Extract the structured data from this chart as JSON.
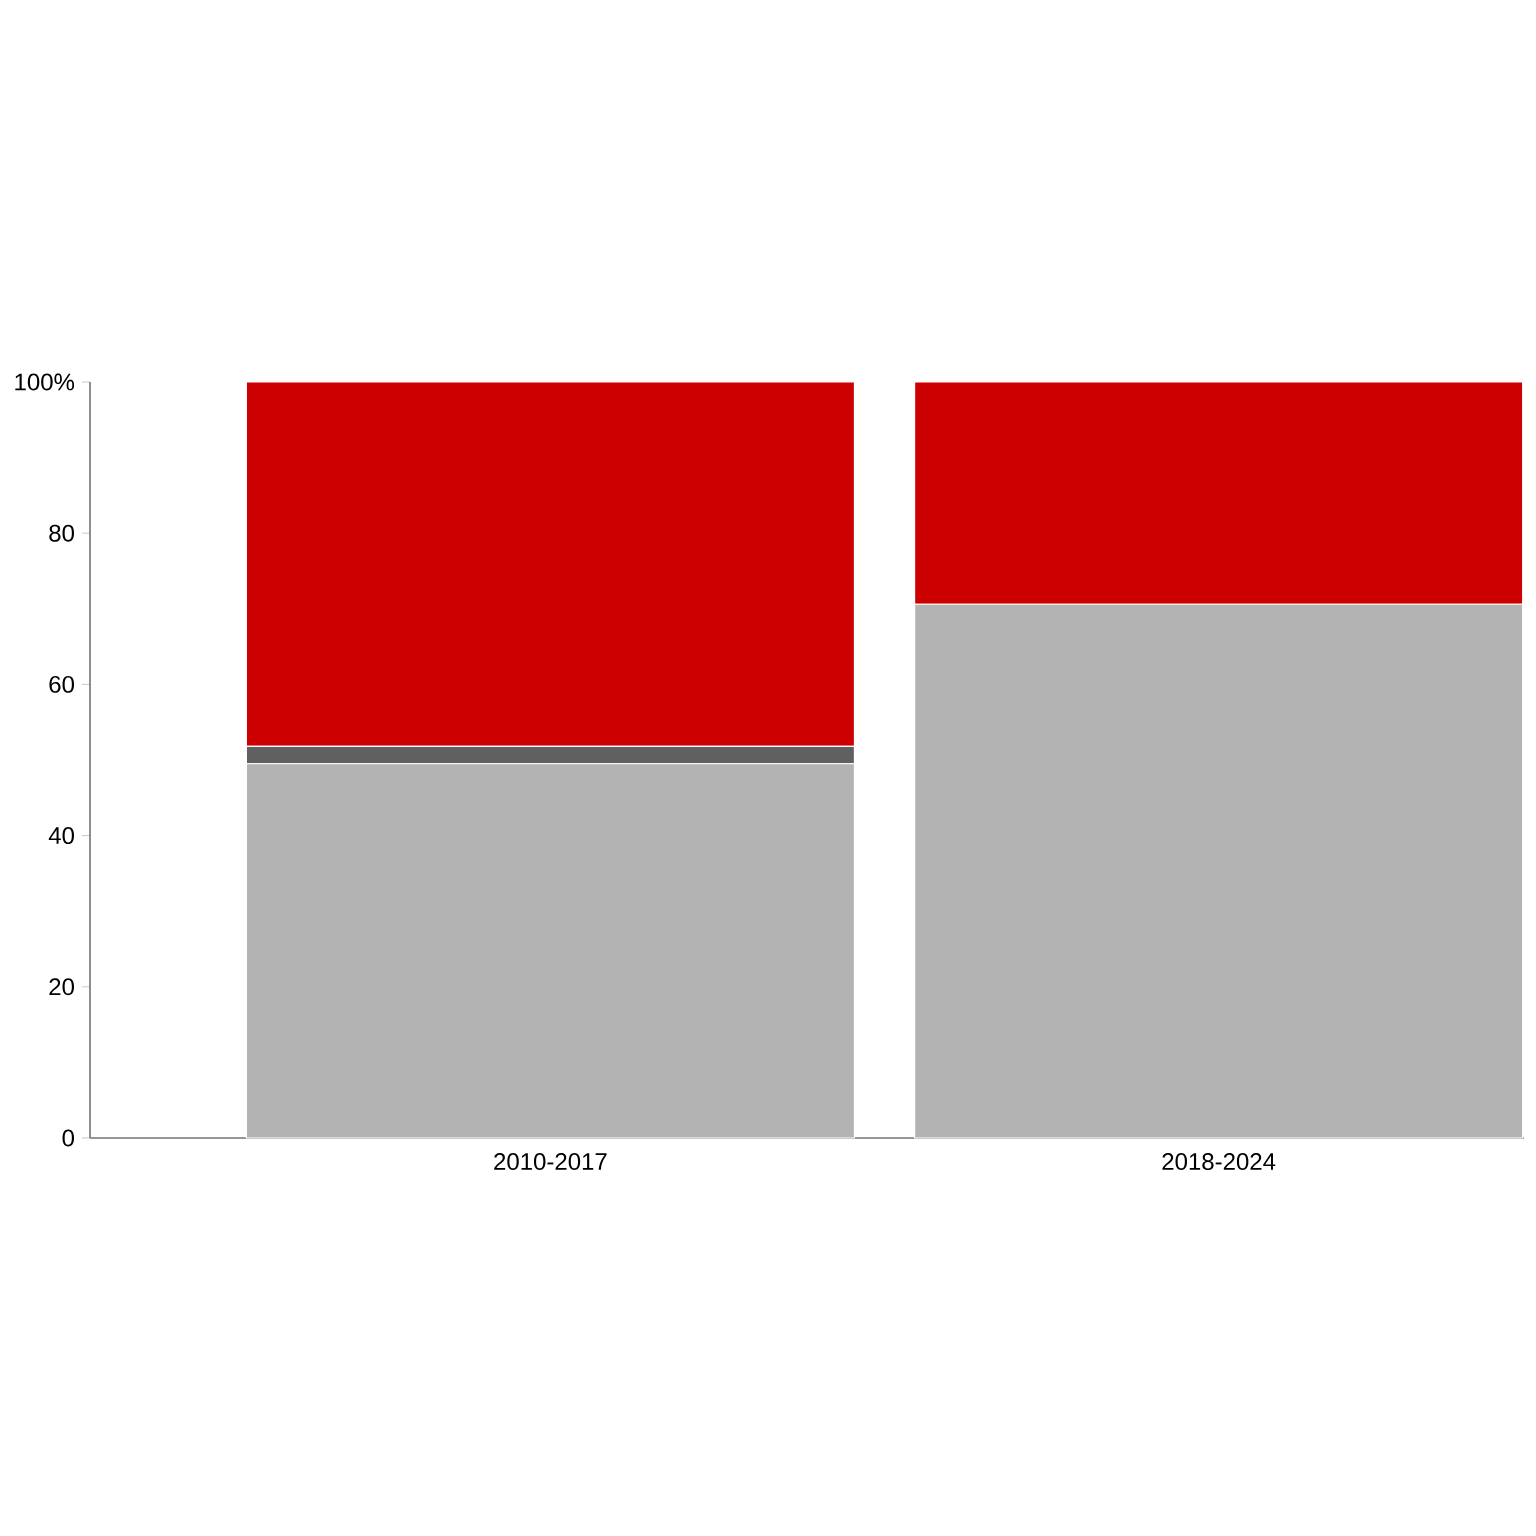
{
  "chart_data": {
    "type": "bar",
    "stacked": true,
    "categories": [
      "2010-2017",
      "2018-2024"
    ],
    "series": [
      {
        "color": "#b3b3b3",
        "values": [
          49.5,
          70.6
        ]
      },
      {
        "color": "#606060",
        "values": [
          2.3,
          0
        ]
      },
      {
        "color": "#cc0000",
        "values": [
          48.2,
          29.4
        ]
      }
    ],
    "ylim": [
      0,
      100
    ],
    "yticks": [
      0,
      20,
      40,
      60,
      80,
      {
        "value": 100,
        "label": "100%"
      }
    ]
  }
}
